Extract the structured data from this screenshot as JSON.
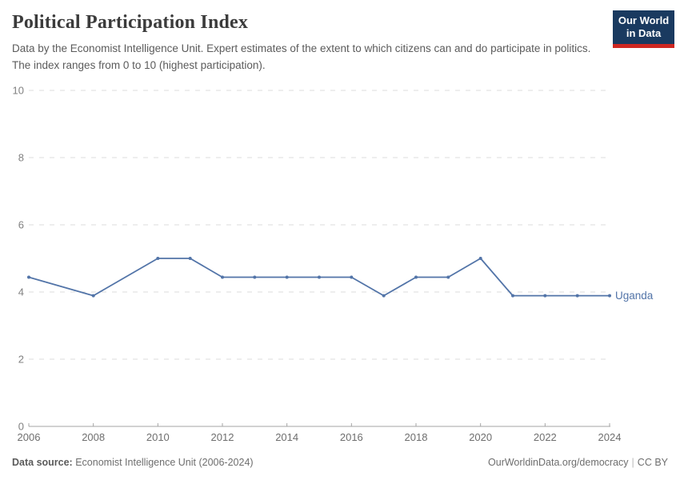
{
  "header": {
    "title": "Political Participation Index",
    "subtitle": "Data by the Economist Intelligence Unit. Expert estimates of the extent to which citizens can and do participate in politics. The index ranges from 0 to 10 (highest participation).",
    "logo": {
      "line1": "Our World",
      "line2": "in Data"
    }
  },
  "chart_data": {
    "type": "line",
    "title": "Political Participation Index",
    "xlabel": "",
    "ylabel": "",
    "xlim": [
      2006,
      2024
    ],
    "ylim": [
      0,
      10
    ],
    "xticks": [
      2006,
      2008,
      2010,
      2012,
      2014,
      2016,
      2018,
      2020,
      2022,
      2024
    ],
    "yticks": [
      0,
      2,
      4,
      6,
      8,
      10
    ],
    "grid": "horizontal-dashed",
    "legend_position": "end-of-line",
    "series": [
      {
        "name": "Uganda",
        "color": "#5274a8",
        "points": [
          [
            2006,
            4.44
          ],
          [
            2008,
            3.89
          ],
          [
            2010,
            5.0
          ],
          [
            2011,
            5.0
          ],
          [
            2012,
            4.44
          ],
          [
            2013,
            4.44
          ],
          [
            2014,
            4.44
          ],
          [
            2015,
            4.44
          ],
          [
            2016,
            4.44
          ],
          [
            2017,
            3.89
          ],
          [
            2018,
            4.44
          ],
          [
            2019,
            4.44
          ],
          [
            2020,
            5.0
          ],
          [
            2021,
            3.89
          ],
          [
            2022,
            3.89
          ],
          [
            2023,
            3.89
          ],
          [
            2024,
            3.89
          ]
        ]
      }
    ]
  },
  "footer": {
    "source_label": "Data source:",
    "source_value": "Economist Intelligence Unit (2006-2024)",
    "url": "OurWorldinData.org/democracy",
    "separator": "|",
    "license": "CC BY"
  },
  "colors": {
    "line": "#5274a8",
    "grid": "#dcdcdc",
    "axis": "#a5a5a5",
    "tick_label": "#6e6e6e",
    "y_label": "#818181",
    "title": "#3b3b3b",
    "subtitle": "#5b5b5b",
    "logo_bg": "#1a3a60",
    "logo_red": "#cf2721"
  }
}
